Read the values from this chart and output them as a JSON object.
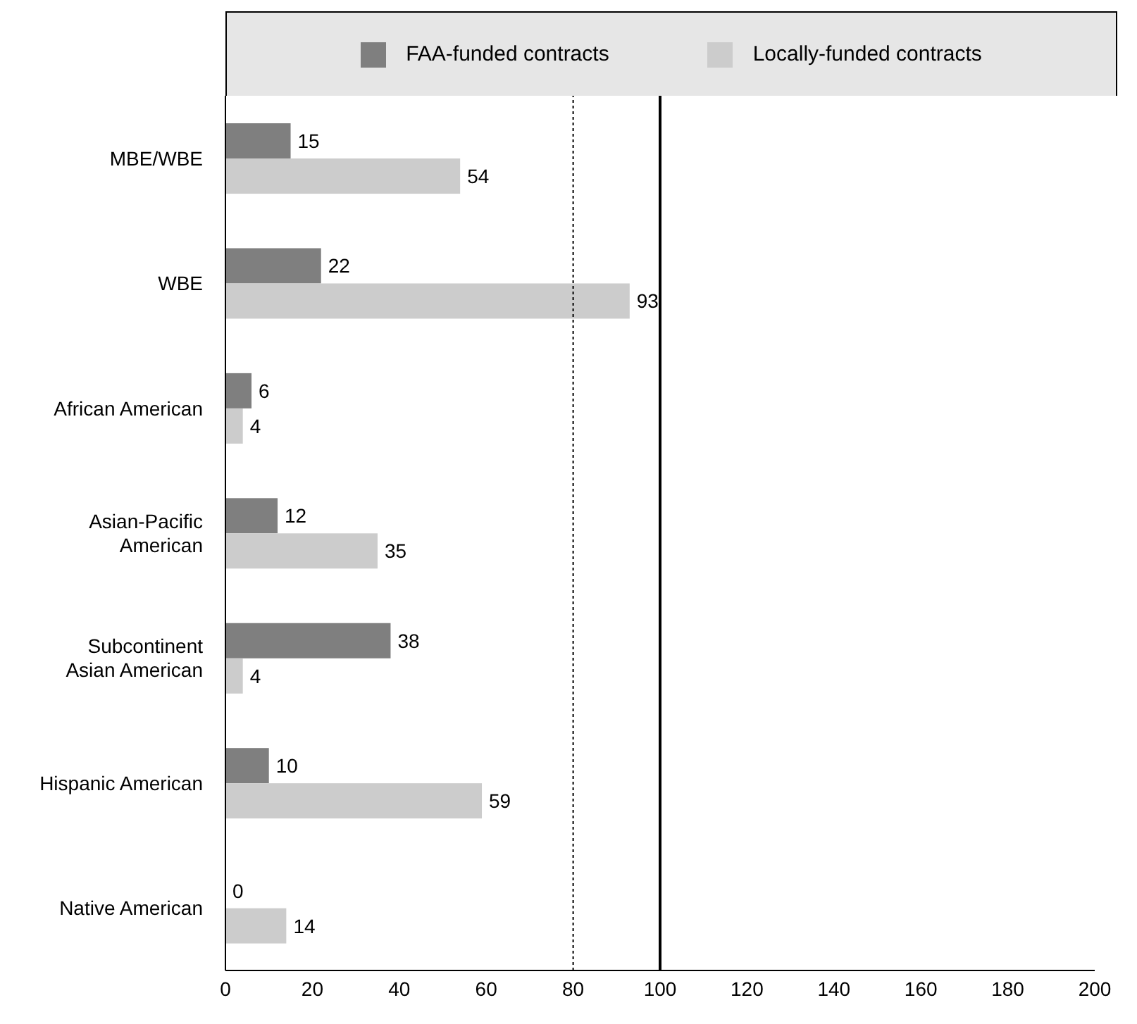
{
  "chart_data": {
    "type": "bar",
    "orientation": "horizontal",
    "categories": [
      "MBE/WBE",
      "WBE",
      "African American",
      "Asian-Pacific American",
      "Subcontinent Asian American",
      "Hispanic American",
      "Native American"
    ],
    "series": [
      {
        "name": "FAA-funded contracts",
        "color": "#7f7f7f",
        "values": [
          15,
          22,
          6,
          12,
          38,
          10,
          0
        ]
      },
      {
        "name": "Locally-funded contracts",
        "color": "#cccccc",
        "values": [
          54,
          93,
          4,
          35,
          4,
          59,
          14
        ]
      }
    ],
    "xlim": [
      0,
      200
    ],
    "xticks": [
      0,
      20,
      40,
      60,
      80,
      100,
      120,
      140,
      160,
      180,
      200
    ],
    "ref_lines": [
      {
        "axis": "x",
        "value": 80,
        "color": "#000000",
        "line_style": "dotted"
      },
      {
        "axis": "x",
        "value": 100,
        "color": "#000000",
        "line_style": "solid"
      }
    ],
    "data_labels": true,
    "legend": "top",
    "grid": false
  }
}
